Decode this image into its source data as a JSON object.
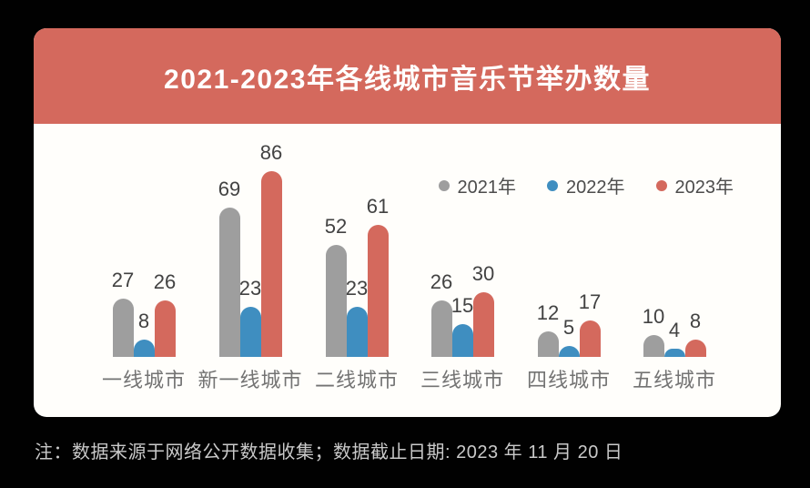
{
  "header": {
    "title": "2021-2023年各线城市音乐节举办数量"
  },
  "theme": {
    "page_bg": "#010101",
    "card_bg": "#FFFEFB",
    "banner_bg": "#D4695D",
    "banner_text": "#FFFFFF",
    "value_label": "#424242",
    "category_label": "#737373",
    "legend_text": "#4C4C4C",
    "footnote_text": "#C9C9C9"
  },
  "chart_data": {
    "type": "bar",
    "title": "2021-2023年各线城市音乐节举办数量",
    "categories": [
      "一线城市",
      "新一线城市",
      "二线城市",
      "三线城市",
      "四线城市",
      "五线城市"
    ],
    "series": [
      {
        "name": "2021年",
        "color": "#9E9E9E",
        "values": [
          27,
          69,
          52,
          26,
          12,
          10
        ]
      },
      {
        "name": "2022年",
        "color": "#3F8EC0",
        "values": [
          8,
          23,
          23,
          15,
          5,
          4
        ]
      },
      {
        "name": "2023年",
        "color": "#D4695D",
        "values": [
          26,
          86,
          61,
          30,
          17,
          8
        ]
      }
    ],
    "value_labels": true,
    "grid": false,
    "axes_visible": false,
    "legend_position": "top-right",
    "ylim": [
      0,
      90
    ],
    "bar_style": "rounded-top"
  },
  "footer": {
    "note": "注：数据来源于网络公开数据收集；数据截止日期: 2023 年 11 月 20 日"
  }
}
